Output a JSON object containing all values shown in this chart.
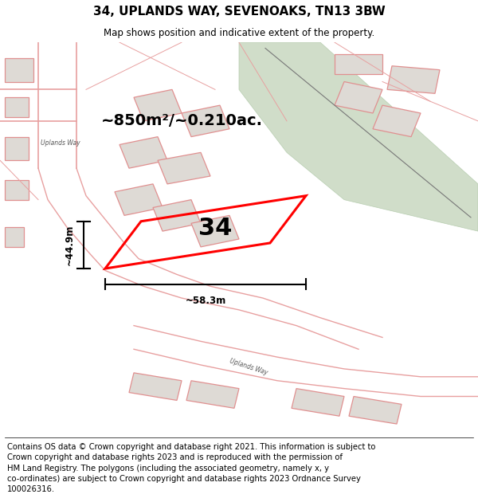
{
  "title": "34, UPLANDS WAY, SEVENOAKS, TN13 3BW",
  "subtitle": "Map shows position and indicative extent of the property.",
  "footer": "Contains OS data © Crown copyright and database right 2021. This information is subject to\nCrown copyright and database rights 2023 and is reproduced with the permission of\nHM Land Registry. The polygons (including the associated geometry, namely x, y\nco-ordinates) are subject to Crown copyright and database rights 2023 Ordnance Survey\n100026316.",
  "map_bg": "#f5f0ea",
  "road_stroke": "#e8a0a0",
  "road_fill": "#f2dada",
  "plot_color": "#ff0000",
  "area_text": "~850m²/~0.210ac.",
  "number_text": "34",
  "width_label": "~58.3m",
  "height_label": "~44.9m",
  "green_color": "#c8d8c0",
  "green_edge": "#b0c8a8",
  "building_fill": "#dedad5",
  "building_stroke": "#e09090",
  "uplands_way_label_top": "Uplands Way",
  "uplands_way_label_bottom": "Uplands Way",
  "footer_fontsize": 7.2,
  "title_fontsize": 11,
  "subtitle_fontsize": 8.5,
  "area_fontsize": 14,
  "number_fontsize": 22
}
